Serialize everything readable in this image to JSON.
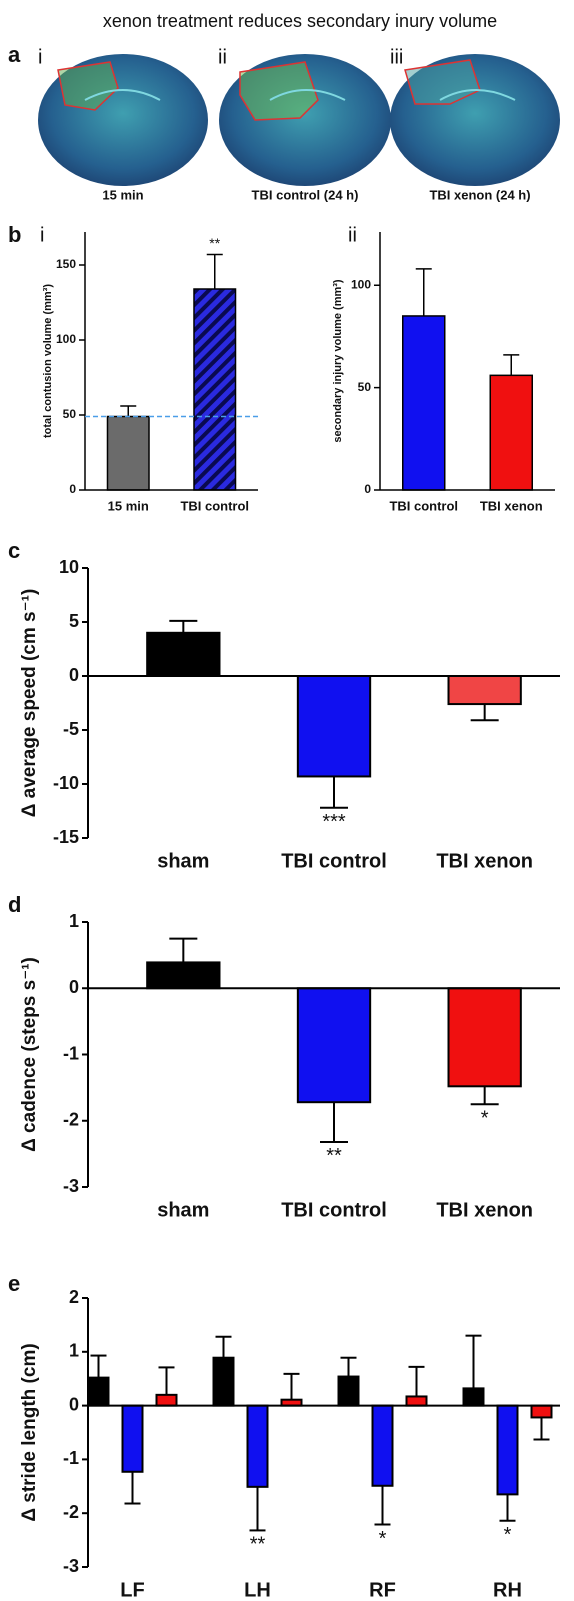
{
  "title": "xenon treatment reduces secondary inury volume",
  "panel_a": {
    "label": "a",
    "images": [
      {
        "numeral": "i",
        "caption": "15 min"
      },
      {
        "numeral": "ii",
        "caption": "TBI control (24 h)"
      },
      {
        "numeral": "iii",
        "caption": "TBI xenon (24 h)"
      }
    ]
  },
  "chart_data": [
    {
      "type": "bar",
      "panel": "b",
      "subpanel": "i",
      "ylabel": "total contusion volume (mm³)",
      "categories": [
        "15 min",
        "TBI control"
      ],
      "series": [
        {
          "values": [
            49,
            134
          ],
          "errors": [
            7,
            23
          ],
          "colors": [
            "#6b6b6b",
            "#1e1ea8"
          ],
          "hatch": [
            false,
            true
          ]
        }
      ],
      "ylim": [
        0,
        172
      ],
      "yticks": [
        0,
        50,
        100,
        150
      ],
      "hline": {
        "value": 49,
        "color": "#4a9ee8"
      },
      "annotations": [
        {
          "text": "**",
          "category": "TBI control"
        }
      ]
    },
    {
      "type": "bar",
      "subpanel": "ii",
      "ylabel": "secondary injury volume (mm³)",
      "categories": [
        "TBI control",
        "TBI xenon"
      ],
      "series": [
        {
          "values": [
            85,
            56
          ],
          "errors": [
            23,
            10
          ],
          "colors": [
            "#1010f0",
            "#f01010"
          ]
        }
      ],
      "ylim": [
        0,
        126
      ],
      "yticks": [
        0,
        50,
        100
      ]
    },
    {
      "type": "bar",
      "panel": "c",
      "ylabel": "Δ average speed (cm s⁻¹)",
      "categories": [
        "sham",
        "TBI control",
        "TBI xenon"
      ],
      "series": [
        {
          "values": [
            4.0,
            -9.3,
            -2.6
          ],
          "errors": [
            1.1,
            2.9,
            1.5
          ],
          "colors": [
            "#000000",
            "#1010f0",
            "#f04545"
          ]
        }
      ],
      "ylim": [
        -15,
        10
      ],
      "yticks": [
        10,
        5,
        0,
        -5,
        -10,
        -15
      ],
      "annotations": [
        {
          "text": "***",
          "category": "TBI control"
        }
      ]
    },
    {
      "type": "bar",
      "panel": "d",
      "ylabel": "Δ cadence (steps s⁻¹)",
      "categories": [
        "sham",
        "TBI control",
        "TBI xenon"
      ],
      "series": [
        {
          "values": [
            0.39,
            -1.72,
            -1.48
          ],
          "errors": [
            0.36,
            0.6,
            0.27
          ],
          "colors": [
            "#000000",
            "#1010f0",
            "#f01010"
          ]
        }
      ],
      "ylim": [
        -3,
        1
      ],
      "yticks": [
        1,
        0,
        -1,
        -2,
        -3
      ],
      "annotations": [
        {
          "text": "**",
          "category": "TBI control"
        },
        {
          "text": "*",
          "category": "TBI xenon"
        }
      ]
    },
    {
      "type": "bar",
      "panel": "e",
      "ylabel": "Δ stride length (cm)",
      "categories": [
        "LF",
        "LH",
        "RF",
        "RH"
      ],
      "series": [
        {
          "color": "#000000",
          "values": [
            0.52,
            0.89,
            0.54,
            0.32
          ],
          "errors": [
            0.41,
            0.39,
            0.35,
            0.98
          ]
        },
        {
          "color": "#1010f0",
          "values": [
            -1.23,
            -1.51,
            -1.49,
            -1.65
          ],
          "errors": [
            0.59,
            0.81,
            0.72,
            0.49
          ]
        },
        {
          "color": "#f01010",
          "values": [
            0.2,
            0.11,
            0.17,
            -0.22
          ],
          "errors": [
            0.51,
            0.48,
            0.55,
            0.41
          ]
        }
      ],
      "ylim": [
        -3,
        2
      ],
      "yticks": [
        2,
        1,
        0,
        -1,
        -2,
        -3
      ],
      "annotations": [
        {
          "text": "**",
          "category": "LH"
        },
        {
          "text": "*",
          "category": "RF"
        },
        {
          "text": "*",
          "category": "RH"
        }
      ]
    }
  ]
}
